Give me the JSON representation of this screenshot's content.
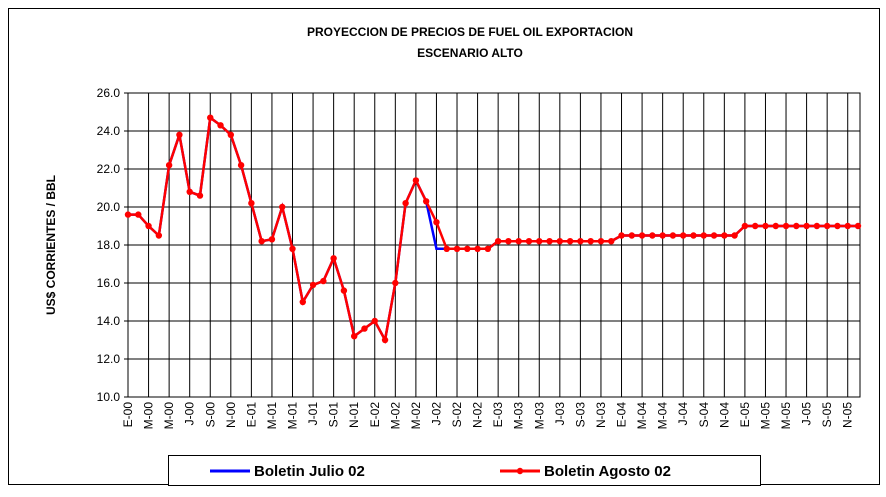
{
  "chart_data": {
    "type": "line",
    "title": "PROYECCION DE PRECIOS DE FUEL OIL EXPORTACION",
    "subtitle": "ESCENARIO ALTO",
    "y_label": "US$ CORRIENTES / BBL",
    "categories": [
      "E-00",
      null,
      "M-00",
      null,
      "M-00",
      null,
      "J-00",
      null,
      "S-00",
      null,
      "N-00",
      null,
      "E-01",
      null,
      "M-01",
      null,
      "M-01",
      null,
      "J-01",
      null,
      "S-01",
      null,
      "N-01",
      null,
      "E-02",
      null,
      "M-02",
      null,
      "M-02",
      null,
      "J-02",
      null,
      "S-02",
      null,
      "N-02",
      null,
      "E-03",
      null,
      "M-03",
      null,
      "M-03",
      null,
      "J-03",
      null,
      "S-03",
      null,
      "N-03",
      null,
      "E-04",
      null,
      "M-04",
      null,
      "M-04",
      null,
      "J-04",
      null,
      "S-04",
      null,
      "N-04",
      null,
      "E-05",
      null,
      "M-05",
      null,
      "M-05",
      null,
      "J-05",
      null,
      "S-05",
      null,
      "N-05",
      null
    ],
    "series": [
      {
        "name": "Boletin Julio 02",
        "color": "#0000ff",
        "markers": false,
        "values": [
          19.6,
          19.6,
          19.0,
          18.5,
          22.2,
          23.8,
          20.8,
          20.6,
          24.7,
          24.3,
          23.8,
          22.2,
          20.2,
          18.2,
          18.3,
          20.0,
          17.8,
          15.0,
          15.9,
          16.1,
          17.3,
          15.6,
          13.2,
          13.6,
          14.0,
          13.0,
          16.0,
          20.2,
          21.4,
          20.3,
          17.8,
          17.8,
          17.8,
          17.8,
          17.8,
          17.8,
          18.2,
          18.2,
          18.2,
          18.2,
          18.2,
          18.2,
          18.2,
          18.2,
          18.2,
          18.2,
          18.2,
          18.2,
          18.5,
          18.5,
          18.5,
          18.5,
          18.5,
          18.5,
          18.5,
          18.5,
          18.5,
          18.5,
          18.5,
          18.5,
          19.0,
          19.0,
          19.0,
          19.0,
          19.0,
          19.0,
          19.0,
          19.0,
          19.0,
          19.0,
          19.0,
          19.0
        ]
      },
      {
        "name": "Boletin Agosto 02",
        "color": "#ff0000",
        "markers": true,
        "values": [
          19.6,
          19.6,
          19.0,
          18.5,
          22.2,
          23.8,
          20.8,
          20.6,
          24.7,
          24.3,
          23.8,
          22.2,
          20.2,
          18.2,
          18.3,
          20.0,
          17.8,
          15.0,
          15.9,
          16.1,
          17.3,
          15.6,
          13.2,
          13.6,
          14.0,
          13.0,
          16.0,
          20.2,
          21.4,
          20.3,
          19.2,
          17.8,
          17.8,
          17.8,
          17.8,
          17.8,
          18.2,
          18.2,
          18.2,
          18.2,
          18.2,
          18.2,
          18.2,
          18.2,
          18.2,
          18.2,
          18.2,
          18.2,
          18.5,
          18.5,
          18.5,
          18.5,
          18.5,
          18.5,
          18.5,
          18.5,
          18.5,
          18.5,
          18.5,
          18.5,
          19.0,
          19.0,
          19.0,
          19.0,
          19.0,
          19.0,
          19.0,
          19.0,
          19.0,
          19.0,
          19.0,
          19.0
        ]
      }
    ],
    "ylim": [
      10,
      26
    ],
    "yticks": [
      {
        "value": 10,
        "label": "10.0"
      },
      {
        "value": 12,
        "label": "12.0"
      },
      {
        "value": 14,
        "label": "14.0"
      },
      {
        "value": 16,
        "label": "16.0"
      },
      {
        "value": 18,
        "label": "18.0"
      },
      {
        "value": 20,
        "label": "20.0"
      },
      {
        "value": 22,
        "label": "22.0"
      },
      {
        "value": 24,
        "label": "24.0"
      },
      {
        "value": 26,
        "label": "26.0"
      }
    ],
    "grid": true,
    "legend": "bottom"
  }
}
